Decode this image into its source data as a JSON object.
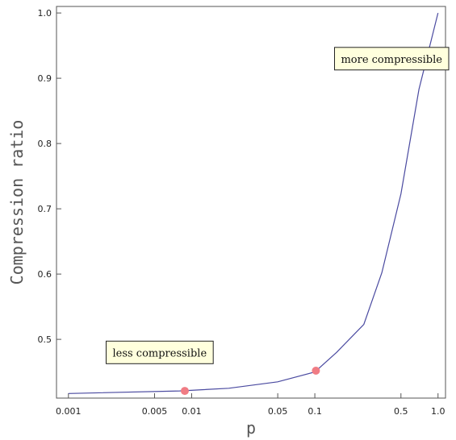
{
  "chart_data": {
    "type": "line",
    "xlabel": "p",
    "ylabel": "Compression ratio",
    "xscale": "log",
    "xlim": [
      0.0008,
      1.15
    ],
    "ylim": [
      0.41,
      1.01
    ],
    "x_ticks": [
      {
        "value": 0.001,
        "label": "0.001"
      },
      {
        "value": 0.005,
        "label": "0.005"
      },
      {
        "value": 0.01,
        "label": "0.01"
      },
      {
        "value": 0.05,
        "label": "0.05"
      },
      {
        "value": 0.1,
        "label": "0.1"
      },
      {
        "value": 0.5,
        "label": "0.5"
      },
      {
        "value": 1.0,
        "label": "1.0"
      }
    ],
    "y_ticks": [
      {
        "value": 0.5,
        "label": "0.5"
      },
      {
        "value": 0.6,
        "label": "0.6"
      },
      {
        "value": 0.7,
        "label": "0.7"
      },
      {
        "value": 0.8,
        "label": "0.8"
      },
      {
        "value": 0.9,
        "label": "0.9"
      },
      {
        "value": 1.0,
        "label": "1.0"
      }
    ],
    "series": [
      {
        "color": "#4a4aa0",
        "points": [
          {
            "x": 0.001,
            "y": 0.417
          },
          {
            "x": 0.008,
            "y": 0.421
          },
          {
            "x": 0.02,
            "y": 0.425
          },
          {
            "x": 0.05,
            "y": 0.435
          },
          {
            "x": 0.1,
            "y": 0.45
          },
          {
            "x": 0.15,
            "y": 0.48
          },
          {
            "x": 0.25,
            "y": 0.523
          },
          {
            "x": 0.35,
            "y": 0.602
          },
          {
            "x": 0.5,
            "y": 0.723
          },
          {
            "x": 0.7,
            "y": 0.883
          },
          {
            "x": 1.0,
            "y": 1.0
          }
        ]
      }
    ],
    "markers": [
      {
        "x": 0.0088,
        "y": 0.421,
        "color": "#f07c84"
      },
      {
        "x": 0.102,
        "y": 0.452,
        "color": "#f07c84"
      }
    ],
    "annotations": [
      {
        "text": "more compressible",
        "x": 0.42,
        "y": 0.93
      },
      {
        "text": "less compressible",
        "x": 0.0055,
        "y": 0.48
      }
    ],
    "annotation_fill": "#ffffdd"
  }
}
